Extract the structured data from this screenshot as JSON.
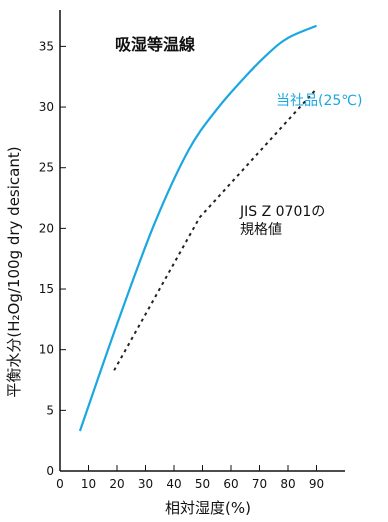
{
  "chart_data": {
    "type": "line",
    "title": "吸湿等温線",
    "xlabel": "相対湿度(%)",
    "ylabel": "平衡水分(H₂Og/100g dry desicant)",
    "xlim": [
      0,
      100
    ],
    "ylim": [
      0,
      38
    ],
    "x_ticks": [
      0,
      10,
      20,
      30,
      40,
      50,
      60,
      70,
      80,
      90
    ],
    "y_ticks": [
      0,
      5,
      10,
      15,
      20,
      25,
      30,
      35
    ],
    "grid": false,
    "series": [
      {
        "name": "当社品(25℃)",
        "style": "solid",
        "color": "#1aa7e0",
        "x": [
          7,
          20,
          33,
          45,
          55,
          65,
          73,
          80,
          90
        ],
        "y": [
          3.3,
          12.1,
          20.3,
          26.4,
          29.8,
          32.5,
          34.4,
          35.7,
          36.7
        ]
      },
      {
        "name": "JIS Z 0701の規格値",
        "style": "dotted",
        "color": "#222222",
        "x": [
          19,
          49,
          90
        ],
        "y": [
          8.3,
          20.9,
          31.5
        ]
      }
    ]
  }
}
